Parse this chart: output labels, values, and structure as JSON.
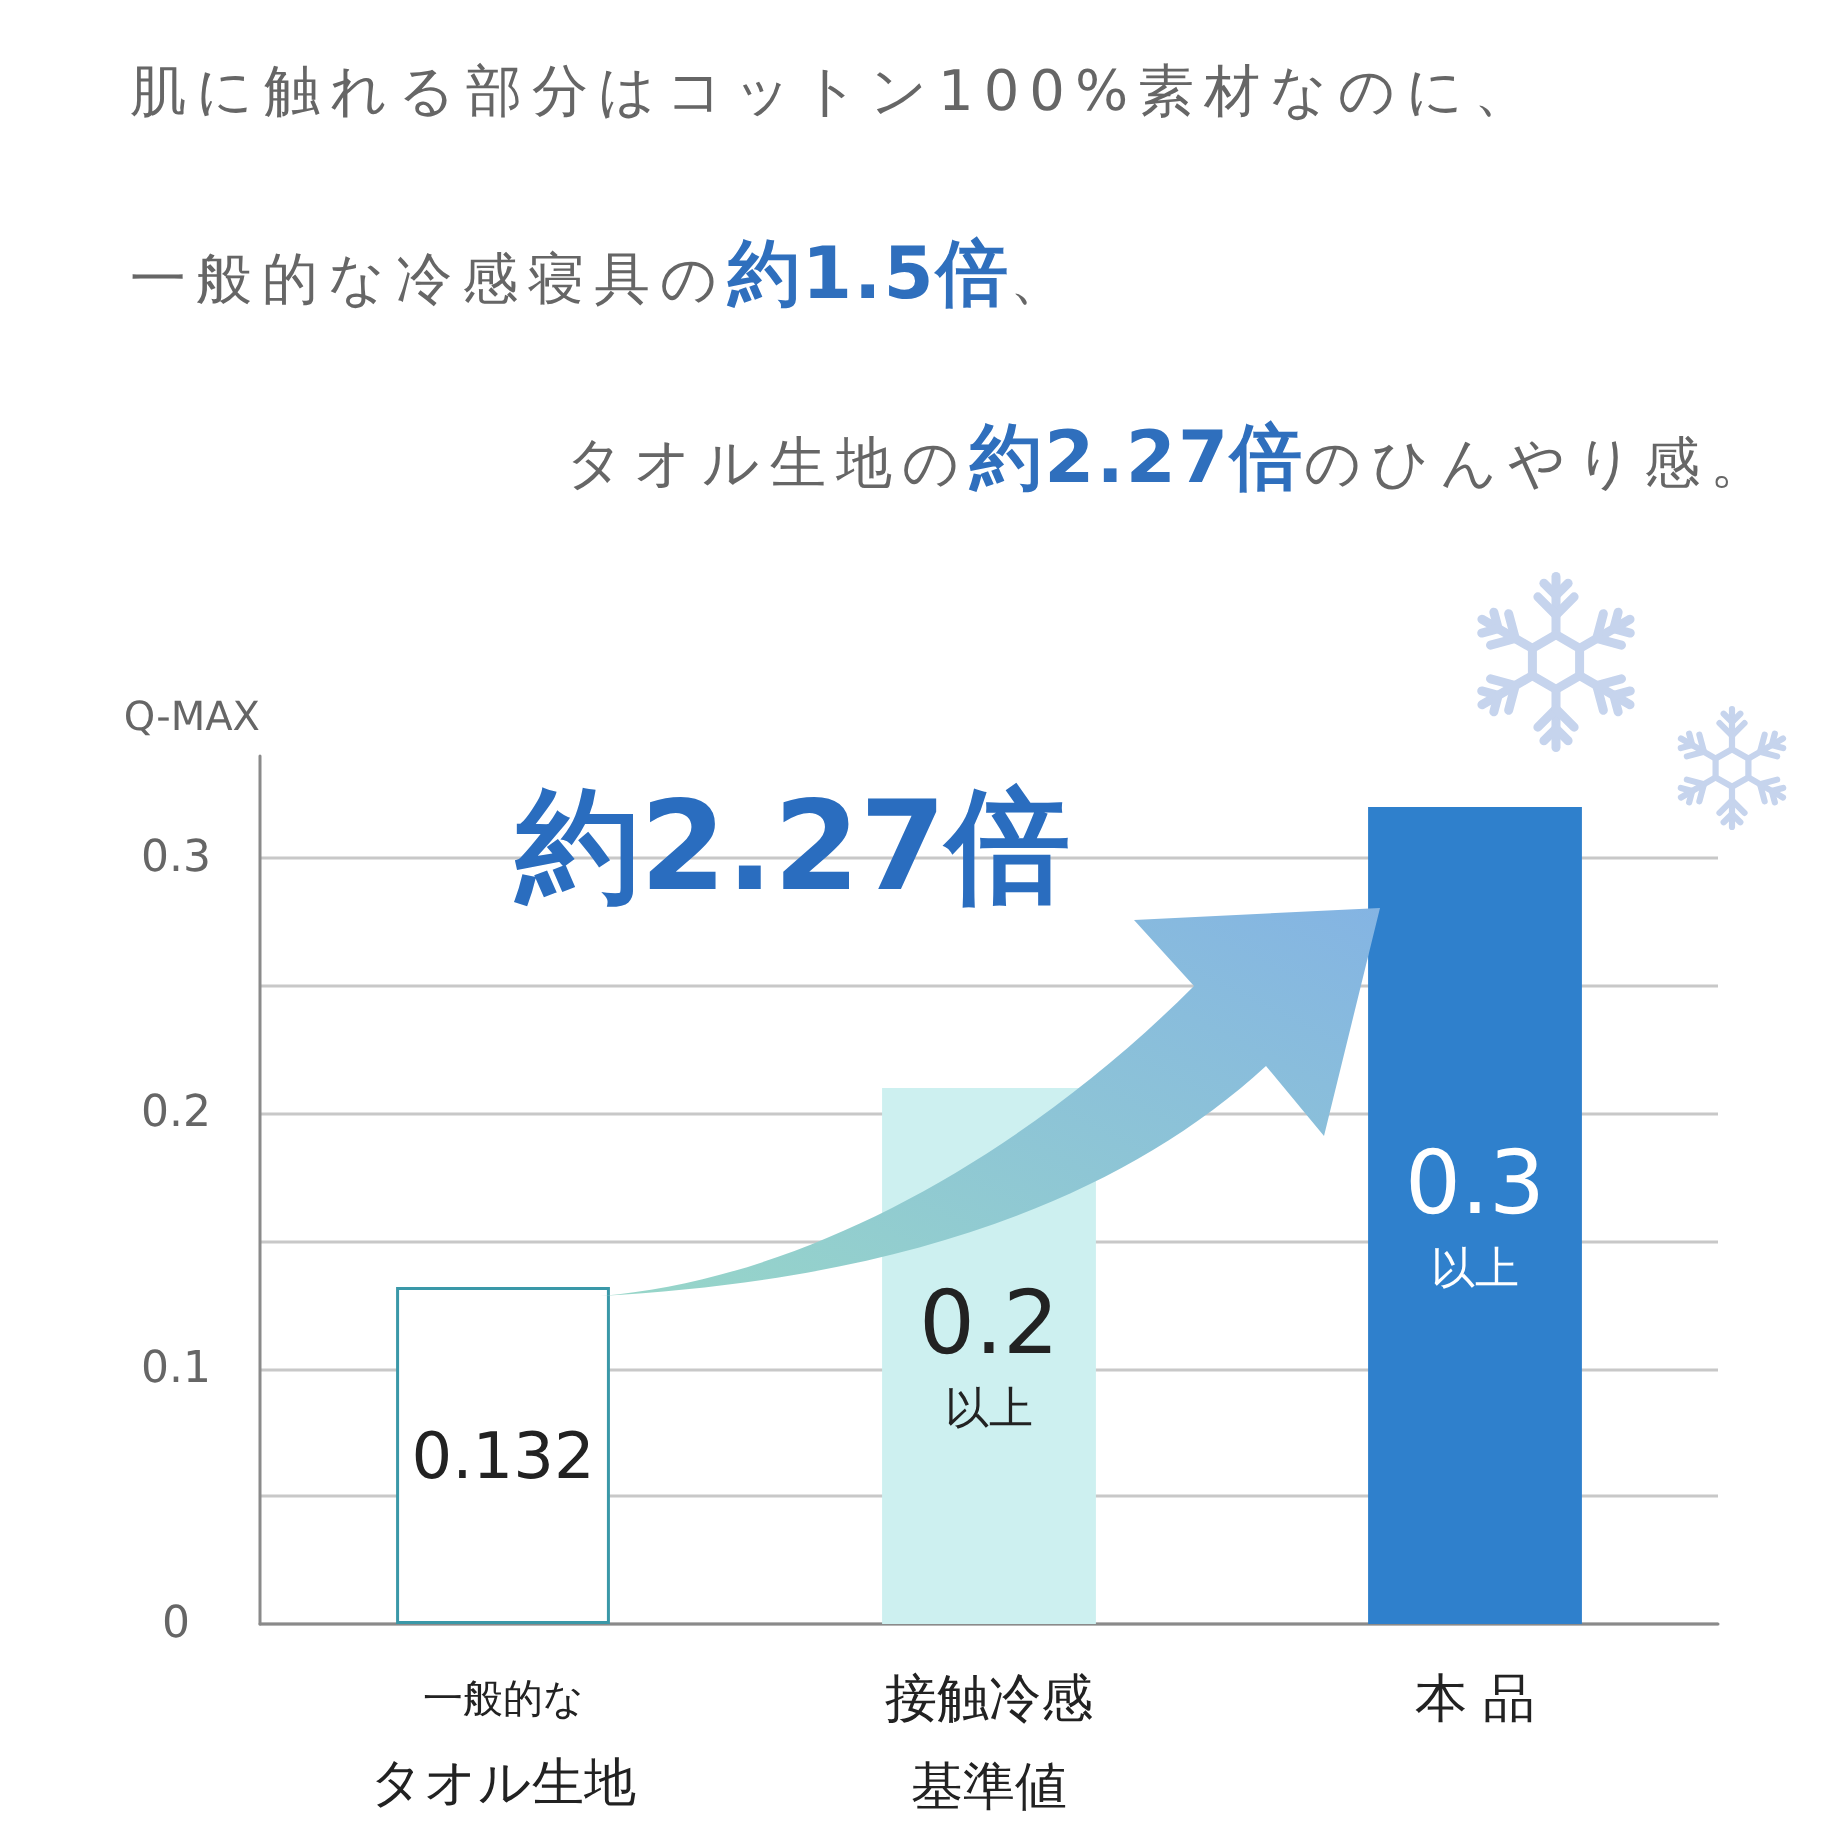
{
  "chart_data": {
    "type": "bar",
    "title": "肌に触れる部分はコットン100%素材なのに、一般的な冷感寝具の約1.5倍、タオル生地の約2.27倍のひんやり感。",
    "ylabel": "Q-MAX",
    "categories": [
      "一般的なタオル生地",
      "接触冷感基準値",
      "本 品"
    ],
    "values": [
      0.132,
      0.21,
      0.32
    ],
    "colors": [
      "#ffffff",
      "#cdf0f0",
      "#2f80cc"
    ],
    "value_labels": [
      "0.132",
      "0.2\n以上",
      "0.3\n以上"
    ],
    "ylim": [
      0,
      0.34
    ],
    "yticks": [
      0,
      {
        "value": 0.05,
        "label": null
      },
      0.1,
      {
        "value": 0.15,
        "label": null
      },
      0.2,
      {
        "value": 0.25,
        "label": null
      },
      0.3
    ],
    "grid": "y",
    "annotations": [
      "約2.27倍"
    ]
  }
}
